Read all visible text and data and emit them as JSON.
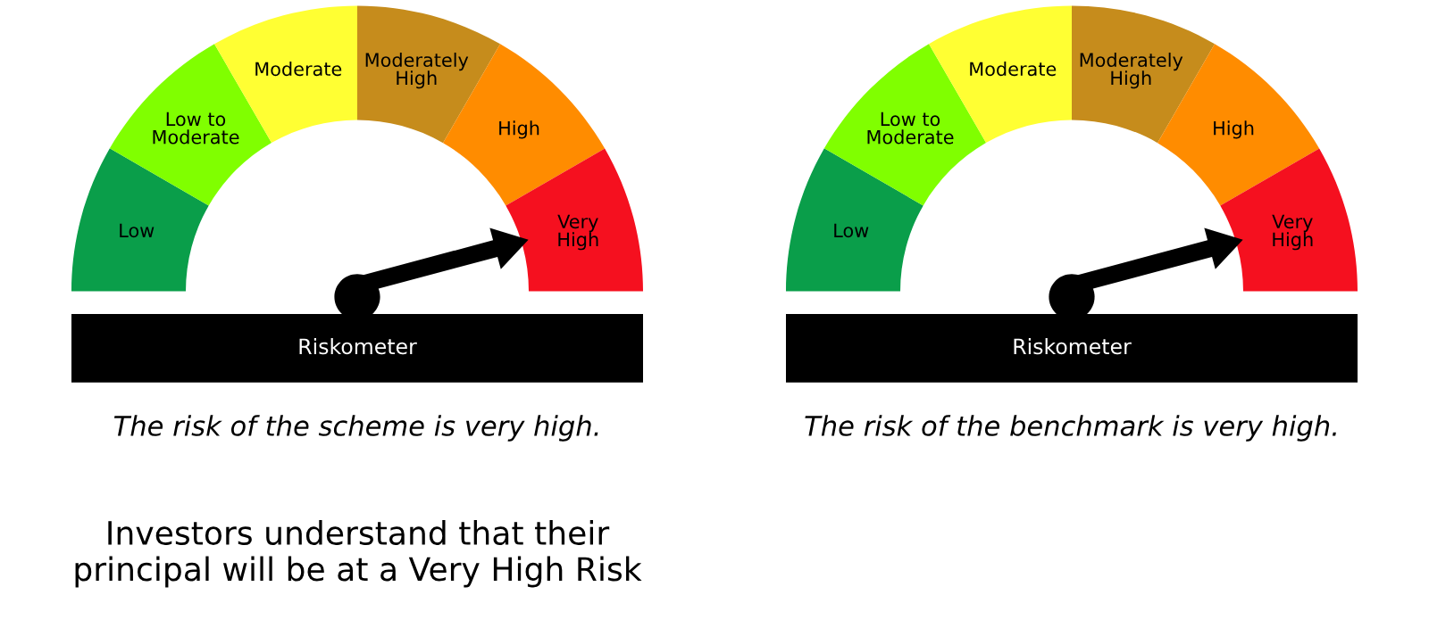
{
  "chart_data": [
    {
      "type": "donut",
      "categories": [
        "Low",
        "Low to\nModerate",
        "Moderate",
        "Moderately\nHigh",
        "High",
        "Very\nHigh"
      ],
      "values": [
        16.67,
        16.67,
        16.66,
        16.67,
        16.67,
        16.66
      ],
      "colors": [
        "#0a9e4a",
        "#80ff00",
        "#ffff33",
        "#c68c1c",
        "#ff8c00",
        "#f5101f"
      ],
      "needle": "Very\nHigh",
      "annotations": [
        "Riskometer",
        "The risk of the scheme is very high.",
        "Investors understand that their\nprincipal will be at a Very High Risk"
      ]
    },
    {
      "type": "donut",
      "categories": [
        "Low",
        "Low to\nModerate",
        "Moderate",
        "Moderately\nHigh",
        "High",
        "Very\nHigh"
      ],
      "values": [
        16.67,
        16.67,
        16.66,
        16.67,
        16.67,
        16.66
      ],
      "colors": [
        "#0a9e4a",
        "#80ff00",
        "#ffff33",
        "#c68c1c",
        "#ff8c00",
        "#f5101f"
      ],
      "needle": "Very\nHigh",
      "annotations": [
        "Riskometer",
        "The risk of the benchmark is very high."
      ]
    }
  ]
}
